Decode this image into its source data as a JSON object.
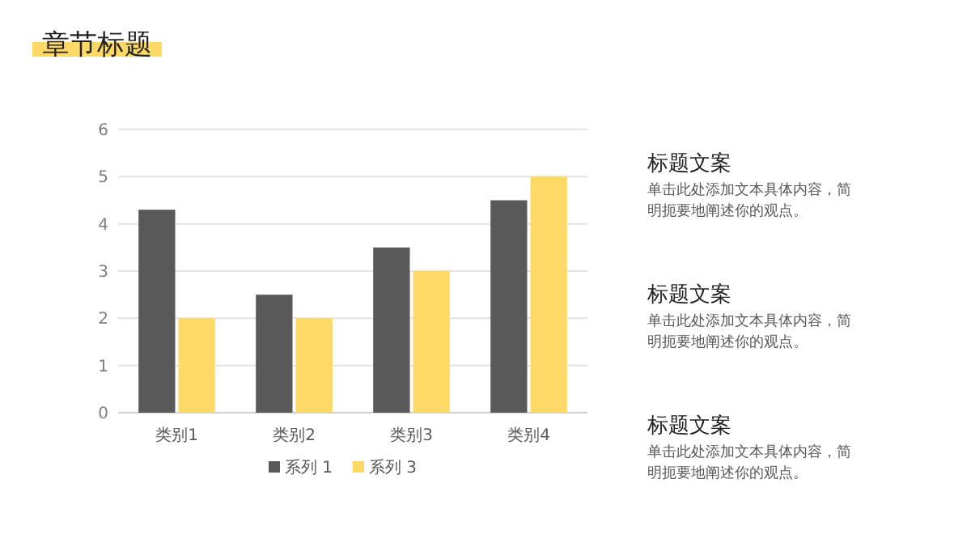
{
  "chart_data": {
    "type": "bar",
    "title": "章节标题",
    "categories": [
      "类别1",
      "类别2",
      "类别3",
      "类别4"
    ],
    "series": [
      {
        "name": "系列 1",
        "color": "#595959",
        "values": [
          4.3,
          2.5,
          3.5,
          4.5
        ]
      },
      {
        "name": "系列 3",
        "color": "#ffd966",
        "values": [
          2,
          2,
          3,
          5
        ]
      }
    ],
    "ylim": [
      0,
      6
    ],
    "yticks": [
      0,
      1,
      2,
      3,
      4,
      5,
      6
    ],
    "grid": "y",
    "legend": "bottom",
    "annotations": [
      "标题文案",
      "单击此处添加文本具体内容，简明扼要地阐述你的观点。",
      "标题文案",
      "单击此处添加文本具体内容，简明扼要地阐述你的观点。",
      "标题文案",
      "单击此处添加文本具体内容，简明扼要地阐述你的观点。"
    ]
  }
}
